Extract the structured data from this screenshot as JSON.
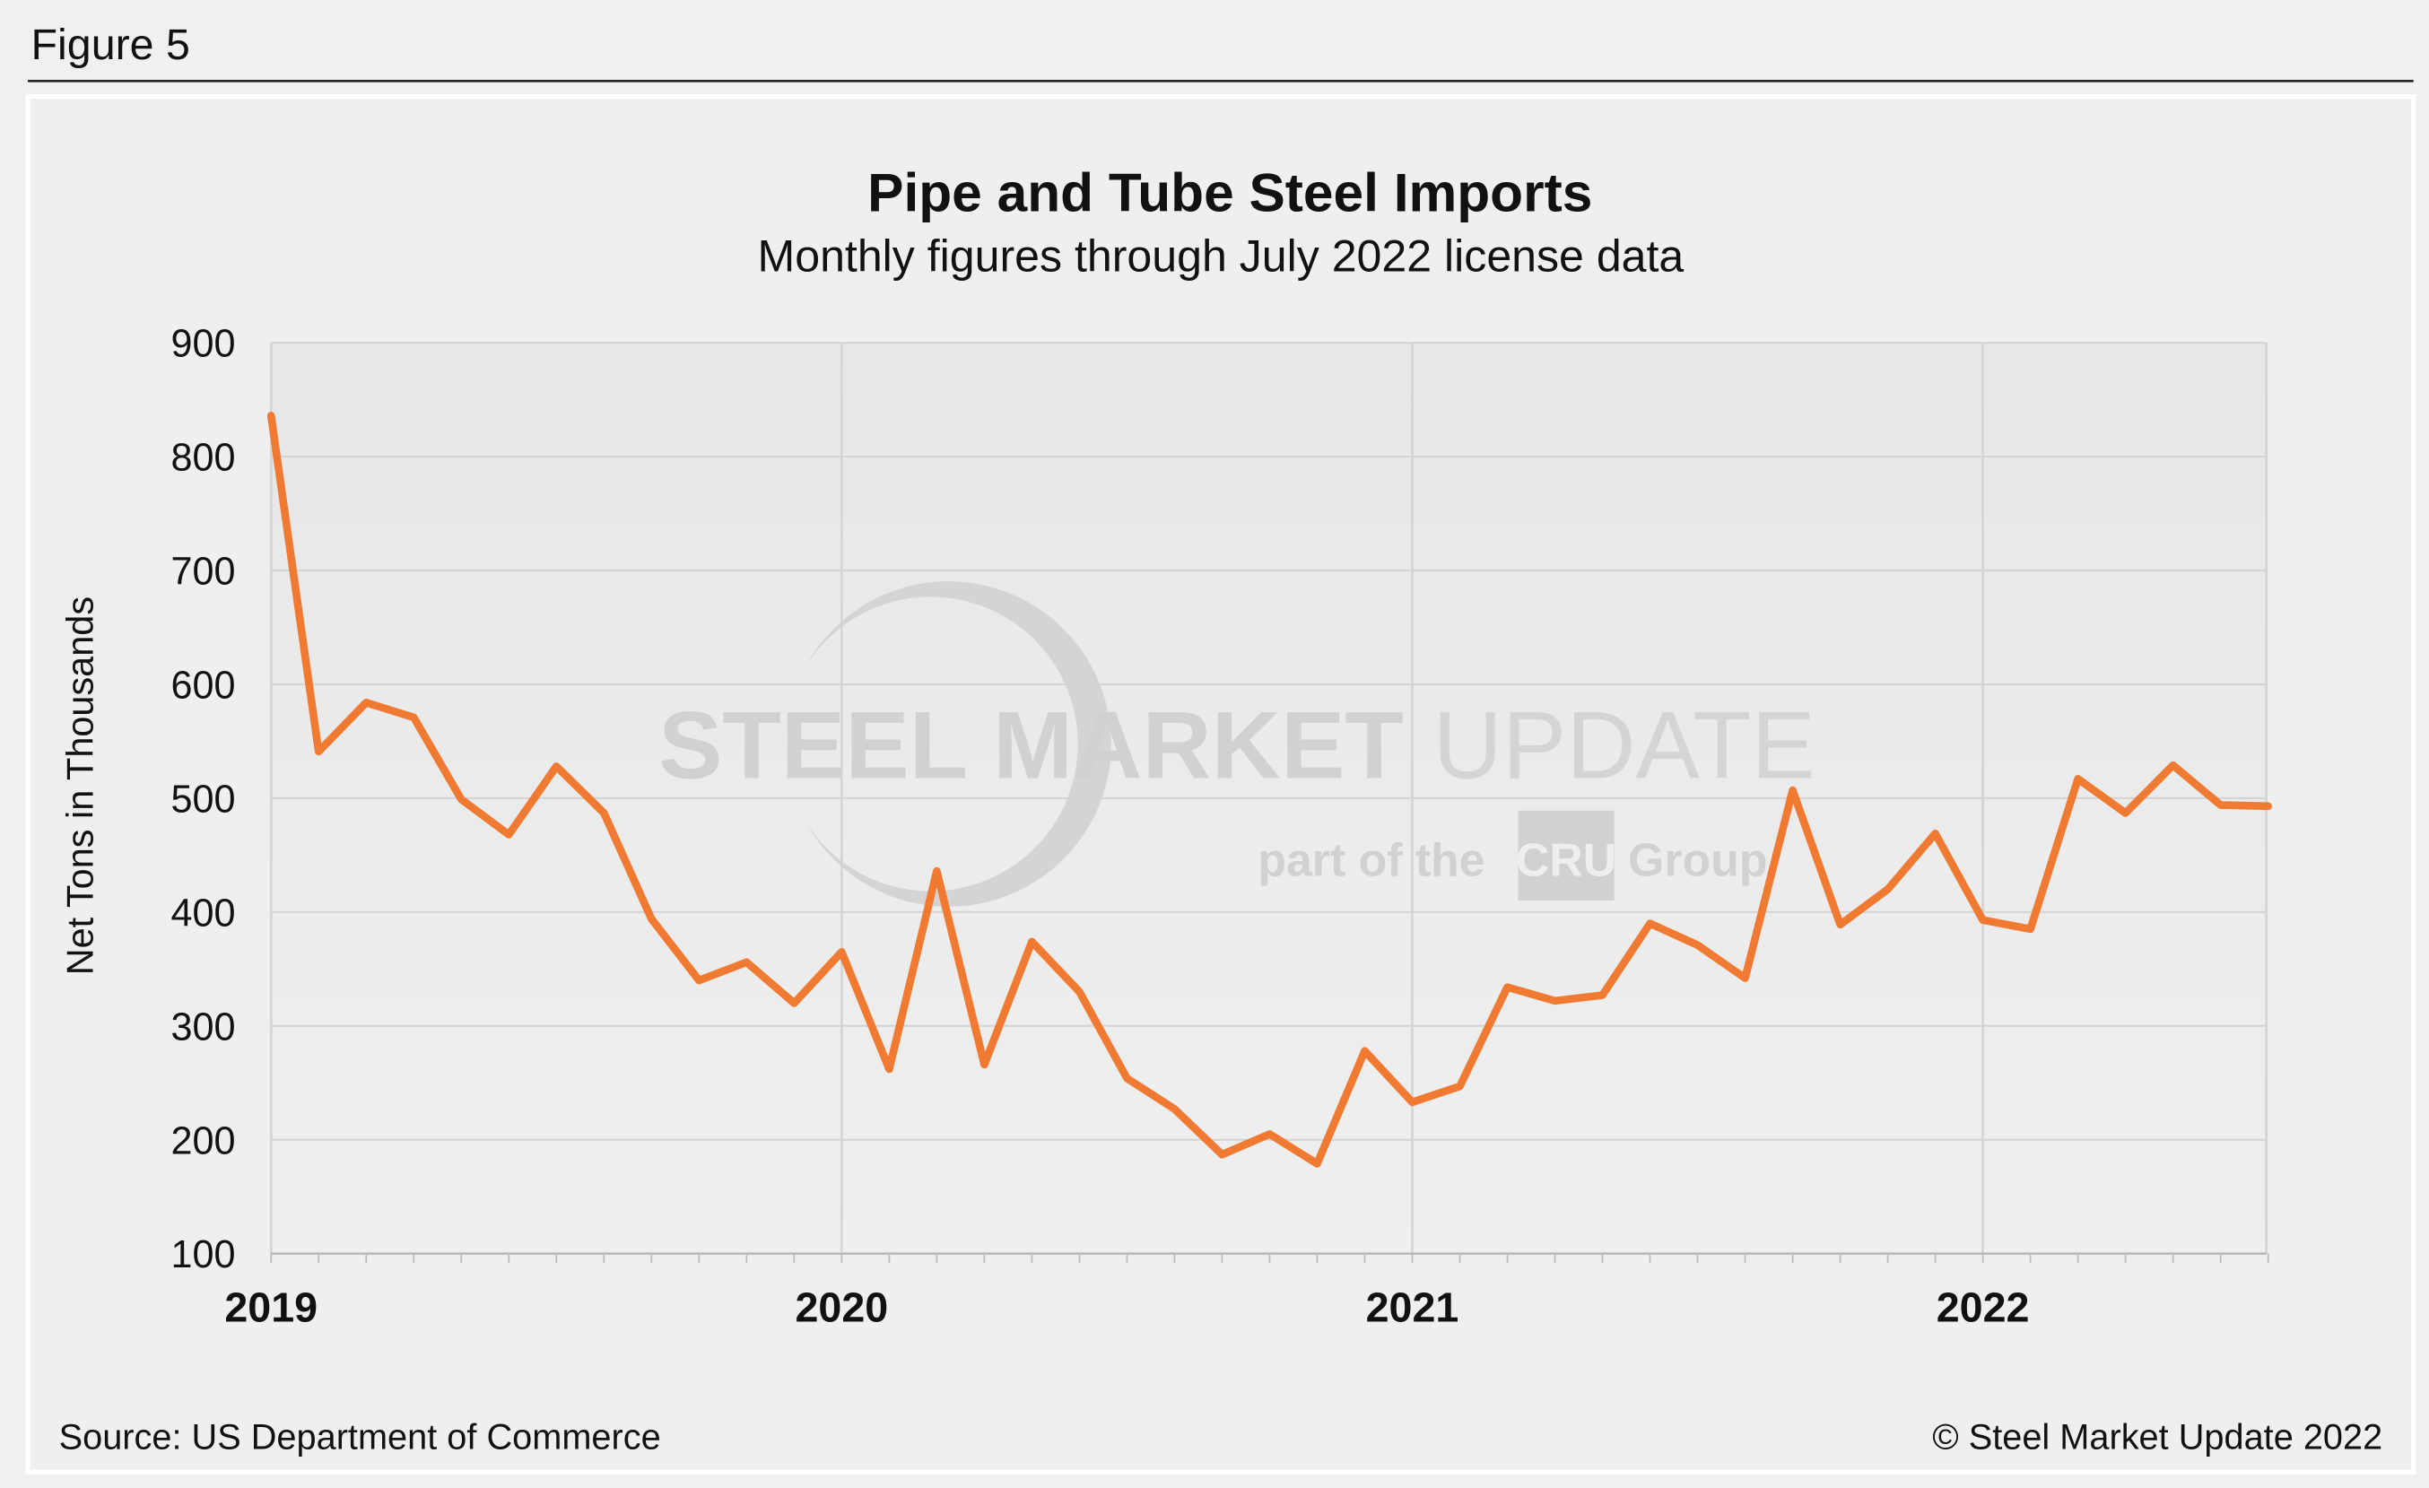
{
  "figure_label": "Figure 5",
  "source": "Source: US Department of Commerce",
  "copyright": "© Steel Market Update 2022",
  "watermark": {
    "line1a": "STEEL MARKET",
    "line1b": "UPDATE",
    "line2a": "part of the",
    "logo": "CRU",
    "line2b": "Group"
  },
  "colors": {
    "line": "#f07a32",
    "plot_bg": "#e8e9ea",
    "grid": "#d4d4d4"
  },
  "chart_data": {
    "type": "line",
    "title": "Pipe and Tube Steel Imports",
    "subtitle": "Monthly figures through July 2022 license data",
    "xlabel": "",
    "ylabel": "Net Tons in Thousands",
    "ylim": [
      100,
      900
    ],
    "yticks": [
      100,
      200,
      300,
      400,
      500,
      600,
      700,
      800,
      900
    ],
    "xticks": [
      "2019",
      "2020",
      "2021",
      "2022"
    ],
    "grid": true,
    "start": "2019-01",
    "end": "2022-07",
    "series": [
      {
        "values": [
          836,
          541,
          584,
          571,
          499,
          468,
          528,
          487,
          394,
          340,
          356,
          320,
          365,
          262,
          436,
          266,
          374,
          330,
          254,
          227,
          187,
          205,
          179,
          278,
          233,
          247,
          334,
          322,
          327,
          390,
          371,
          342,
          507,
          389,
          420,
          469,
          393,
          385,
          517,
          487,
          529,
          494,
          493
        ]
      }
    ]
  }
}
